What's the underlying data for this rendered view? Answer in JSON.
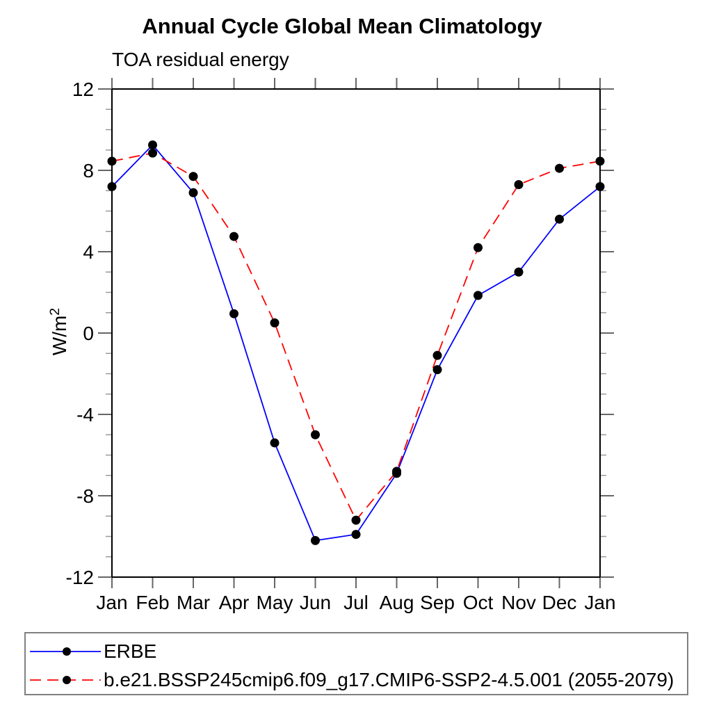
{
  "chart_data": {
    "type": "line",
    "title": "Annual Cycle Global Mean Climatology",
    "subtitle": "TOA residual energy",
    "ylabel": {
      "base": "W/m",
      "sup": "2"
    },
    "categories": [
      "Jan",
      "Feb",
      "Mar",
      "Apr",
      "May",
      "Jun",
      "Jul",
      "Aug",
      "Sep",
      "Oct",
      "Nov",
      "Dec",
      "Jan"
    ],
    "series": [
      {
        "name": "ERBE",
        "color": "#0000ff",
        "style": "solid",
        "values": [
          7.2,
          9.25,
          6.9,
          0.95,
          -5.4,
          -10.2,
          -9.9,
          -6.9,
          -1.8,
          1.85,
          3.0,
          5.6,
          7.2
        ]
      },
      {
        "name": "b.e21.BSSP245cmip6.f09_g17.CMIP6-SSP2-4.5.001 (2055-2079)",
        "color": "#ff0000",
        "style": "dashed",
        "values": [
          8.45,
          8.85,
          7.7,
          4.75,
          0.5,
          -5.0,
          -9.2,
          -6.8,
          -1.1,
          4.2,
          7.3,
          8.1,
          8.45
        ]
      }
    ],
    "marker": {
      "shape": "circle",
      "color": "#000000"
    },
    "ylim": [
      -12,
      12
    ],
    "ytick_major": [
      12,
      8,
      4,
      0,
      -4,
      -8,
      -12
    ],
    "ytick_minor_step": 1,
    "grid": false,
    "legend_position": "bottom-box",
    "axis_colors": {
      "frame": "#000000",
      "major_tick": "#666666",
      "minor_tick": "#999999"
    }
  }
}
